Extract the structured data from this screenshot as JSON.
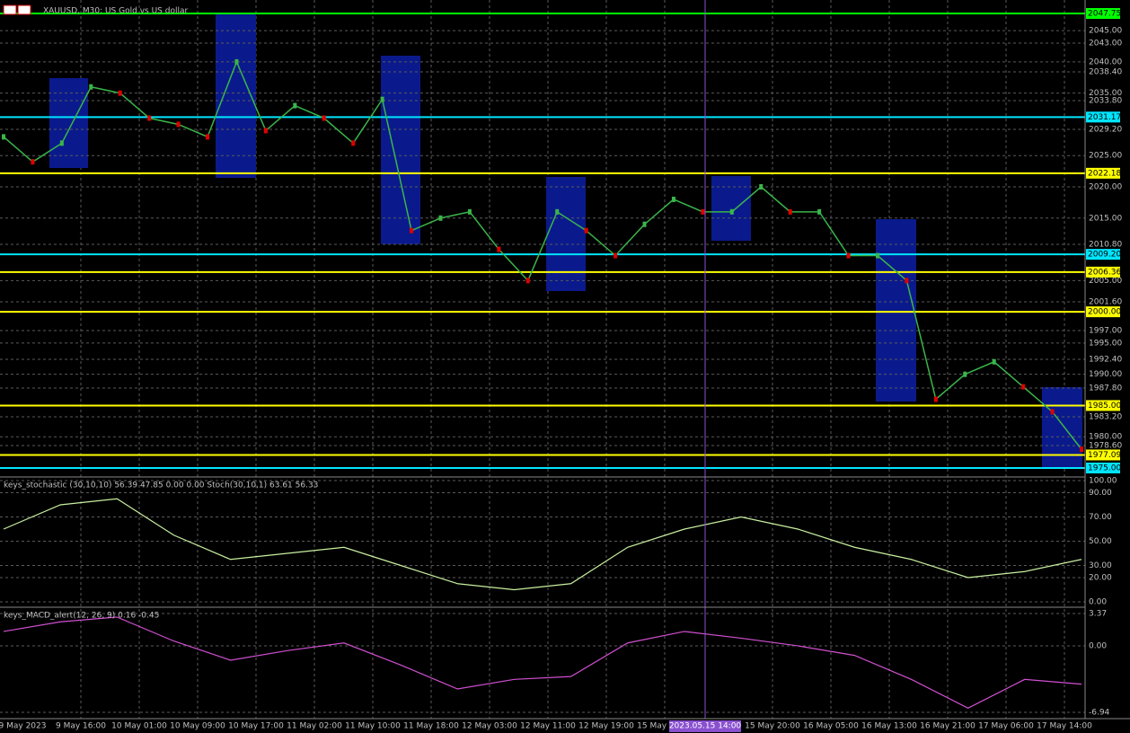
{
  "window": {
    "title": "XAUUSD, M30: US Gold vs US dollar"
  },
  "price_axis": {
    "ticks": [
      {
        "value": 2045,
        "label": "2045.00"
      },
      {
        "value": 2043,
        "label": "2043.00"
      },
      {
        "value": 2040,
        "label": "2040.00"
      },
      {
        "value": 2038.4,
        "label": "2038.40"
      },
      {
        "value": 2035,
        "label": "2035.00"
      },
      {
        "value": 2033.8,
        "label": "2033.80"
      },
      {
        "value": 2029.2,
        "label": "2029.20"
      },
      {
        "value": 2025,
        "label": "2025.00"
      },
      {
        "value": 2020,
        "label": "2020.00"
      },
      {
        "value": 2015,
        "label": "2015.00"
      },
      {
        "value": 2010.8,
        "label": "2010.80"
      },
      {
        "value": 2005,
        "label": "2005.00"
      },
      {
        "value": 2001.6,
        "label": "2001.60"
      },
      {
        "value": 1997,
        "label": "1997.00"
      },
      {
        "value": 1995,
        "label": "1995.00"
      },
      {
        "value": 1992.4,
        "label": "1992.40"
      },
      {
        "value": 1990,
        "label": "1990.00"
      },
      {
        "value": 1987.8,
        "label": "1987.80"
      },
      {
        "value": 1983.2,
        "label": "1983.20"
      },
      {
        "value": 1980,
        "label": "1980.00"
      },
      {
        "value": 1978.6,
        "label": "1978.60"
      }
    ],
    "top": 2047.75,
    "bottom": 1975.0
  },
  "levels": [
    {
      "value": 2047.75,
      "label": "2047.75",
      "color": "#00ff00"
    },
    {
      "value": 2031.17,
      "label": "2031.17",
      "color": "#00e5ff"
    },
    {
      "value": 2022.18,
      "label": "2022.18",
      "color": "#ffff00"
    },
    {
      "value": 2009.2,
      "label": "2009.20",
      "color": "#00e5ff"
    },
    {
      "value": 2006.36,
      "label": "2006.36",
      "color": "#ffff00"
    },
    {
      "value": 2000,
      "label": "2000.00",
      "color": "#ffff00"
    },
    {
      "value": 1985,
      "label": "1985.00",
      "color": "#ffff00"
    },
    {
      "value": 1977.09,
      "label": "1977.09",
      "color": "#ffff00"
    },
    {
      "value": 1975,
      "label": "1975.00",
      "color": "#00e5ff"
    }
  ],
  "price_path": [
    2028,
    2024,
    2027,
    2036,
    2035,
    2031,
    2030,
    2028,
    2040,
    2029,
    2033,
    2031,
    2027,
    2034,
    2013,
    2015,
    2016,
    2010,
    2005,
    2016,
    2013,
    2009,
    2014,
    2018,
    2016,
    2016,
    2020,
    2016,
    2016,
    2009,
    2009,
    2005,
    1986,
    1990,
    1992,
    1988,
    1984,
    1978
  ],
  "stochastic": {
    "label": "keys_stochastic (30,10,10) 56.39 47.85 0.00 0.00 Stoch(30,10,1) 63.61 56.33",
    "ticks": [
      {
        "value": 100,
        "label": "100.00"
      },
      {
        "value": 90,
        "label": "90.00"
      },
      {
        "value": 70,
        "label": "70.00"
      },
      {
        "value": 50,
        "label": "50.00"
      },
      {
        "value": 30,
        "label": "30.00"
      },
      {
        "value": 20,
        "label": "20.00"
      },
      {
        "value": 0,
        "label": "0.00"
      }
    ],
    "values": [
      60,
      80,
      85,
      55,
      35,
      40,
      45,
      30,
      15,
      10,
      15,
      45,
      60,
      70,
      60,
      45,
      35,
      20,
      25,
      35
    ]
  },
  "macd": {
    "label": "keys_MACD_alert(12, 26, 9) 0.16 -0.45",
    "ticks": [
      3.37,
      {
        "value": 0,
        "label": "0.00"
      },
      -6.94
    ],
    "values": [
      1.5,
      2.5,
      3.0,
      0.5,
      -1.5,
      -0.5,
      0.3,
      -2.0,
      -4.5,
      -3.5,
      -3.2,
      0.3,
      1.5,
      0.8,
      0.0,
      -1.0,
      -3.5,
      -6.5,
      -3.5,
      -4.0
    ]
  },
  "time_axis": {
    "labels": [
      "9 May 2023",
      "9 May 16:00",
      "10 May 01:00",
      "10 May 09:00",
      "10 May 17:00",
      "11 May 02:00",
      "11 May 10:00",
      "11 May 18:00",
      "12 May 03:00",
      "12 May 11:00",
      "12 May 19:00",
      "15 May 04:00",
      "15 May 20:00",
      "16 May 05:00",
      "16 May 13:00",
      "16 May 21:00",
      "17 May 06:00",
      "17 May 14:00"
    ],
    "crosshair": "2023.05.15 14:00"
  }
}
